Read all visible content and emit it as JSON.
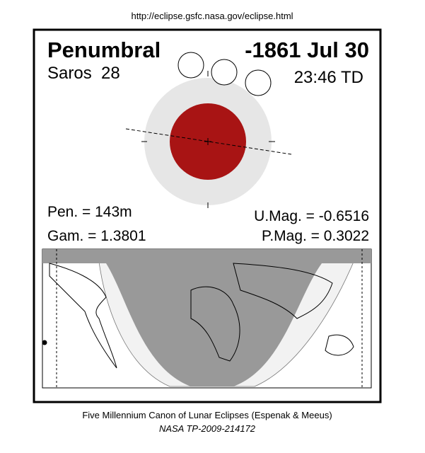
{
  "url": "http://eclipse.gsfc.nasa.gov/eclipse.html",
  "header": {
    "type": "Penumbral",
    "date": "-1861 Jul 30",
    "saros": "Saros  28",
    "time": "23:46 TD"
  },
  "parameters": {
    "pen": "Pen. = 143m",
    "gam": "Gam. = 1.3801",
    "umag": "U.Mag. = -0.6516",
    "pmag": "P.Mag. = 0.3022"
  },
  "footer": {
    "canon": "Five Millennium Canon of Lunar Eclipses (Espenak & Meeus)",
    "reference": "NASA TP-2009-214172"
  }
}
